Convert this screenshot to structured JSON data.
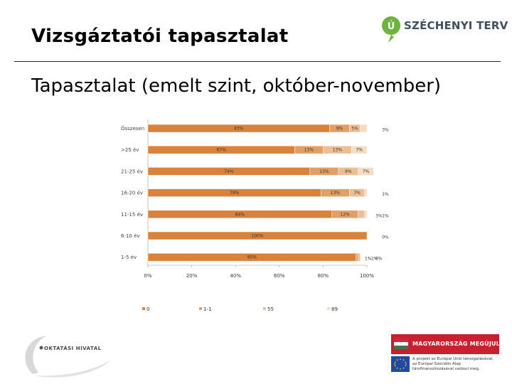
{
  "header": {
    "title": "Vizsgáztatói tapasztalat",
    "logo_text": "SZÉCHENYI TERV",
    "logo_mark": "Ú"
  },
  "subtitle": "Tapasztalat (emelt szint, október-november)",
  "colors": {
    "series": [
      "#d9823b",
      "#e39f63",
      "#edbd93",
      "#f5dcc4"
    ],
    "logo_green": "#6db33f",
    "banner_red": "#c8202f",
    "eu_blue": "#1f4aa0"
  },
  "chart_data": {
    "type": "bar",
    "orientation": "horizontal",
    "stacked": true,
    "title": "",
    "xlabel": "",
    "ylabel": "",
    "xlim": [
      0,
      100
    ],
    "x_ticks": [
      "0%",
      "20%",
      "40%",
      "60%",
      "80%",
      "100%"
    ],
    "legend_position": "bottom",
    "grid": false,
    "categories": [
      "Összesen",
      ">25 év",
      "21-25 év",
      "16-20 év",
      "11-15 év",
      "6-10 év",
      "1-5 év"
    ],
    "series": [
      {
        "name": "0",
        "values": [
          83,
          67,
          74,
          79,
          84,
          100,
          95
        ]
      },
      {
        "name": "1-1",
        "values": [
          9,
          13,
          13,
          13,
          12,
          0,
          1
        ]
      },
      {
        "name": "55",
        "values": [
          5,
          13,
          9,
          7,
          3,
          0,
          1
        ]
      },
      {
        "name": "89",
        "values": [
          3,
          7,
          7,
          1,
          1,
          0,
          0
        ]
      }
    ],
    "labels": [
      [
        "83%",
        "9%",
        "5%",
        "3%"
      ],
      [
        "67%",
        "13%",
        "13%",
        "7%"
      ],
      [
        "74%",
        "13%",
        "9%",
        "7%"
      ],
      [
        "79%",
        "13%",
        "7%",
        "1%"
      ],
      [
        "84%",
        "12%",
        "3%",
        "1%"
      ],
      [
        "100%",
        "",
        "",
        "0%"
      ],
      [
        "95%",
        "1%",
        "1%",
        "0%"
      ]
    ]
  },
  "footer": {
    "office_name": "OKTATÁSI HIVATAL",
    "banner_text": "MAGYARORSZÁG MEGÚJUL",
    "eu_lines": [
      "A projekt az Európai Unió támogatásával,",
      "az Európai Szociális Alap",
      "társfinanszírozásával valósul meg."
    ]
  }
}
